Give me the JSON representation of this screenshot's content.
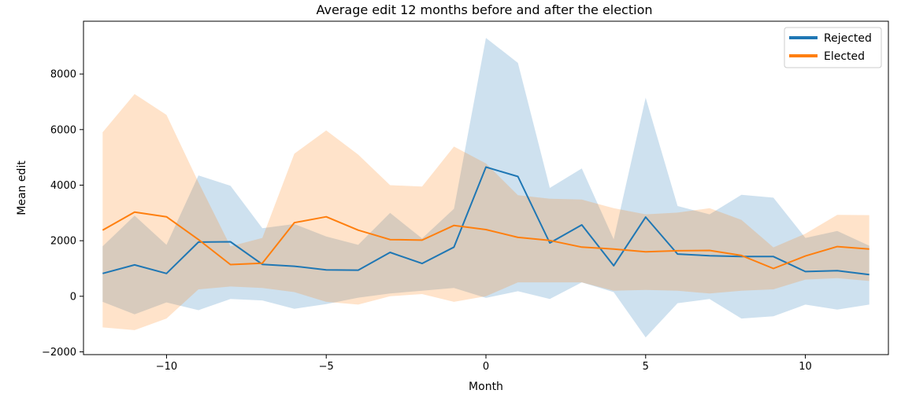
{
  "chart_data": {
    "type": "line",
    "title": "Average edit 12 months before and after the election",
    "xlabel": "Month",
    "ylabel": "Mean edit",
    "xlim": [
      -12.6,
      12.6
    ],
    "ylim": [
      -2100,
      9900
    ],
    "xticks": [
      -10,
      -5,
      0,
      5,
      10
    ],
    "xtick_labels": [
      "−10",
      "−5",
      "0",
      "5",
      "10"
    ],
    "yticks": [
      -2000,
      0,
      2000,
      4000,
      6000,
      8000
    ],
    "ytick_labels": [
      "−2000",
      "0",
      "2000",
      "4000",
      "6000",
      "8000"
    ],
    "grid": false,
    "legend_position": "top-right",
    "x": [
      -12,
      -11,
      -10,
      -9,
      -8,
      -7,
      -6,
      -5,
      -4,
      -3,
      -2,
      -1,
      0,
      1,
      2,
      3,
      4,
      5,
      6,
      7,
      8,
      9,
      10,
      11,
      12
    ],
    "series": [
      {
        "name": "Rejected",
        "color": "#1f77b4",
        "values": [
          820,
          1130,
          820,
          1950,
          1960,
          1150,
          1080,
          950,
          940,
          1580,
          1180,
          1770,
          4650,
          4310,
          1920,
          2570,
          1100,
          2850,
          1520,
          1460,
          1430,
          1430,
          890,
          920,
          780
        ],
        "band_upper": [
          1800,
          2900,
          1850,
          4350,
          3980,
          2450,
          2600,
          2150,
          1850,
          3000,
          2080,
          3150,
          9300,
          8400,
          3900,
          4600,
          2050,
          7150,
          3250,
          2950,
          3650,
          3550,
          2100,
          2350,
          1820
        ],
        "band_lower": [
          -200,
          -650,
          -220,
          -500,
          -100,
          -150,
          -450,
          -280,
          -50,
          100,
          200,
          300,
          -60,
          180,
          -100,
          500,
          150,
          -1480,
          -250,
          -100,
          -800,
          -720,
          -300,
          -480,
          -300
        ]
      },
      {
        "name": "Elected",
        "color": "#ff7f0e",
        "values": [
          2380,
          3030,
          2860,
          2040,
          1140,
          1190,
          2650,
          2860,
          2380,
          2040,
          2020,
          2550,
          2400,
          2120,
          2010,
          1770,
          1700,
          1600,
          1640,
          1650,
          1470,
          1000,
          1450,
          1790,
          1700
        ],
        "band_upper": [
          5900,
          7280,
          6530,
          4100,
          1800,
          2100,
          5130,
          5970,
          5100,
          4000,
          3950,
          5390,
          4780,
          3640,
          3510,
          3480,
          3170,
          2950,
          3010,
          3170,
          2750,
          1760,
          2250,
          2930,
          2920
        ],
        "band_lower": [
          -1120,
          -1220,
          -800,
          250,
          350,
          300,
          150,
          -200,
          -300,
          0,
          80,
          -200,
          0,
          500,
          500,
          500,
          200,
          230,
          200,
          100,
          200,
          250,
          600,
          650,
          550
        ]
      }
    ]
  }
}
